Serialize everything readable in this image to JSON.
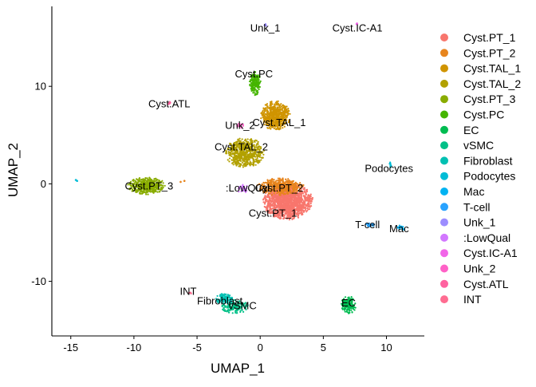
{
  "chart_data": {
    "type": "scatter",
    "title": "",
    "xlabel": "UMAP_1",
    "ylabel": "UMAP_2",
    "xlim": [
      -16.5,
      13
    ],
    "ylim": [
      -15.6,
      18.2
    ],
    "xticks": [
      -15,
      -10,
      -5,
      0,
      5,
      10
    ],
    "yticks": [
      -10,
      0,
      10
    ],
    "legend_position": "right",
    "clusters": [
      {
        "name": "Cyst.PT_1",
        "color": "#F8766D",
        "center": [
          2.2,
          -1.8
        ],
        "spread": [
          2.0,
          1.9
        ],
        "n": 1600,
        "label_text": "Cyst.PT_1",
        "label_at": [
          1.0,
          -3.0
        ]
      },
      {
        "name": "Cyst.PT_2",
        "color": "#E7851E",
        "center": [
          1.6,
          -0.3
        ],
        "spread": [
          1.9,
          0.9
        ],
        "n": 450,
        "label_text": "Cyst.PT_2",
        "label_at": [
          1.5,
          -0.4
        ]
      },
      {
        "name": "Cyst.TAL_1",
        "color": "#D09400",
        "center": [
          1.2,
          7.0
        ],
        "spread": [
          1.2,
          1.5
        ],
        "n": 650,
        "label_text": "Cyst.TAL_1",
        "label_at": [
          1.5,
          6.3
        ]
      },
      {
        "name": "Cyst.TAL_2",
        "color": "#B2A100",
        "center": [
          -1.2,
          3.2
        ],
        "spread": [
          1.6,
          1.5
        ],
        "n": 650,
        "label_text": "Cyst.TAL_2",
        "label_at": [
          -1.5,
          3.8
        ]
      },
      {
        "name": "Cyst.PT_3",
        "color": "#89AC00",
        "center": [
          -9.0,
          -0.2
        ],
        "spread": [
          1.5,
          0.9
        ],
        "n": 500,
        "label_text": "Cyst.PT_3",
        "label_at": [
          -8.8,
          -0.2
        ]
      },
      {
        "name": "Cyst.PC",
        "color": "#45B500",
        "center": [
          -0.4,
          10.3
        ],
        "spread": [
          0.45,
          1.2
        ],
        "n": 200,
        "label_text": "Cyst.PC",
        "label_at": [
          -0.5,
          11.3
        ]
      },
      {
        "name": "EC",
        "color": "#00BC51",
        "center": [
          7.0,
          -12.4
        ],
        "spread": [
          0.6,
          0.9
        ],
        "n": 160,
        "label_text": "EC",
        "label_at": [
          7.0,
          -12.2
        ]
      },
      {
        "name": "vSMC",
        "color": "#00C087",
        "center": [
          -2.0,
          -12.6
        ],
        "spread": [
          1.1,
          0.7
        ],
        "n": 150,
        "label_text": "vSMC",
        "label_at": [
          -1.4,
          -12.5
        ]
      },
      {
        "name": "Fibroblast",
        "color": "#00C0B2",
        "center": [
          -2.8,
          -11.8
        ],
        "spread": [
          0.7,
          0.6
        ],
        "n": 110,
        "label_text": "Fibroblast",
        "label_at": [
          -3.2,
          -12.0
        ]
      },
      {
        "name": "Podocytes",
        "color": "#00BCD6",
        "center": [
          10.3,
          1.9
        ],
        "spread": [
          0.12,
          0.3
        ],
        "n": 12,
        "label_text": "Podocytes",
        "label_at": [
          10.2,
          1.6
        ]
      },
      {
        "name": "Mac",
        "color": "#00B3F2",
        "center": [
          11.2,
          -4.5
        ],
        "spread": [
          0.4,
          0.25
        ],
        "n": 20,
        "label_text": "Mac",
        "label_at": [
          11.0,
          -4.6
        ]
      },
      {
        "name": "T-cell",
        "color": "#29A3FF",
        "center": [
          8.7,
          -4.2
        ],
        "spread": [
          0.35,
          0.2
        ],
        "n": 25,
        "label_text": "T-cell",
        "label_at": [
          8.5,
          -4.2
        ]
      },
      {
        "name": "Unk_1",
        "color": "#9C8DFF",
        "center": [
          0.4,
          16.3
        ],
        "spread": [
          0.15,
          0.15
        ],
        "n": 8,
        "label_text": "Unk_1",
        "label_at": [
          0.4,
          16.0
        ]
      },
      {
        "name": ":LowQual",
        "color": "#D277FF",
        "center": [
          -1.4,
          -0.5
        ],
        "spread": [
          0.5,
          0.5
        ],
        "n": 25,
        "label_text": ":LowQual",
        "label_at": [
          -1.0,
          -0.4
        ]
      },
      {
        "name": "Cyst.IC-A1",
        "color": "#F166E8",
        "center": [
          7.7,
          16.4
        ],
        "spread": [
          0.1,
          0.12
        ],
        "n": 6,
        "label_text": "Cyst.IC-A1",
        "label_at": [
          7.7,
          16.0
        ]
      },
      {
        "name": "Unk_2",
        "color": "#FF61C7",
        "center": [
          -1.6,
          6.0
        ],
        "spread": [
          0.3,
          0.3
        ],
        "n": 15,
        "label_text": "Unk_2",
        "label_at": [
          -1.6,
          6.0
        ]
      },
      {
        "name": "Cyst.ATL",
        "color": "#FF62A0",
        "center": [
          -7.2,
          8.3
        ],
        "spread": [
          0.15,
          0.15
        ],
        "n": 8,
        "label_text": "Cyst.ATL",
        "label_at": [
          -7.2,
          8.2
        ]
      },
      {
        "name": "INT",
        "color": "#FF6C91",
        "center": [
          -5.5,
          -11.2
        ],
        "spread": [
          0.2,
          0.2
        ],
        "n": 6,
        "label_text": "INT",
        "label_at": [
          -5.7,
          -11.0
        ]
      }
    ],
    "stray_points": [
      {
        "x": -14.6,
        "y": 0.4,
        "color": "#00BCD6"
      },
      {
        "x": -14.5,
        "y": 0.3,
        "color": "#00BCD6"
      },
      {
        "x": -6.3,
        "y": 0.2,
        "color": "#E7851E"
      },
      {
        "x": -6.0,
        "y": 0.3,
        "color": "#E7851E"
      }
    ]
  }
}
